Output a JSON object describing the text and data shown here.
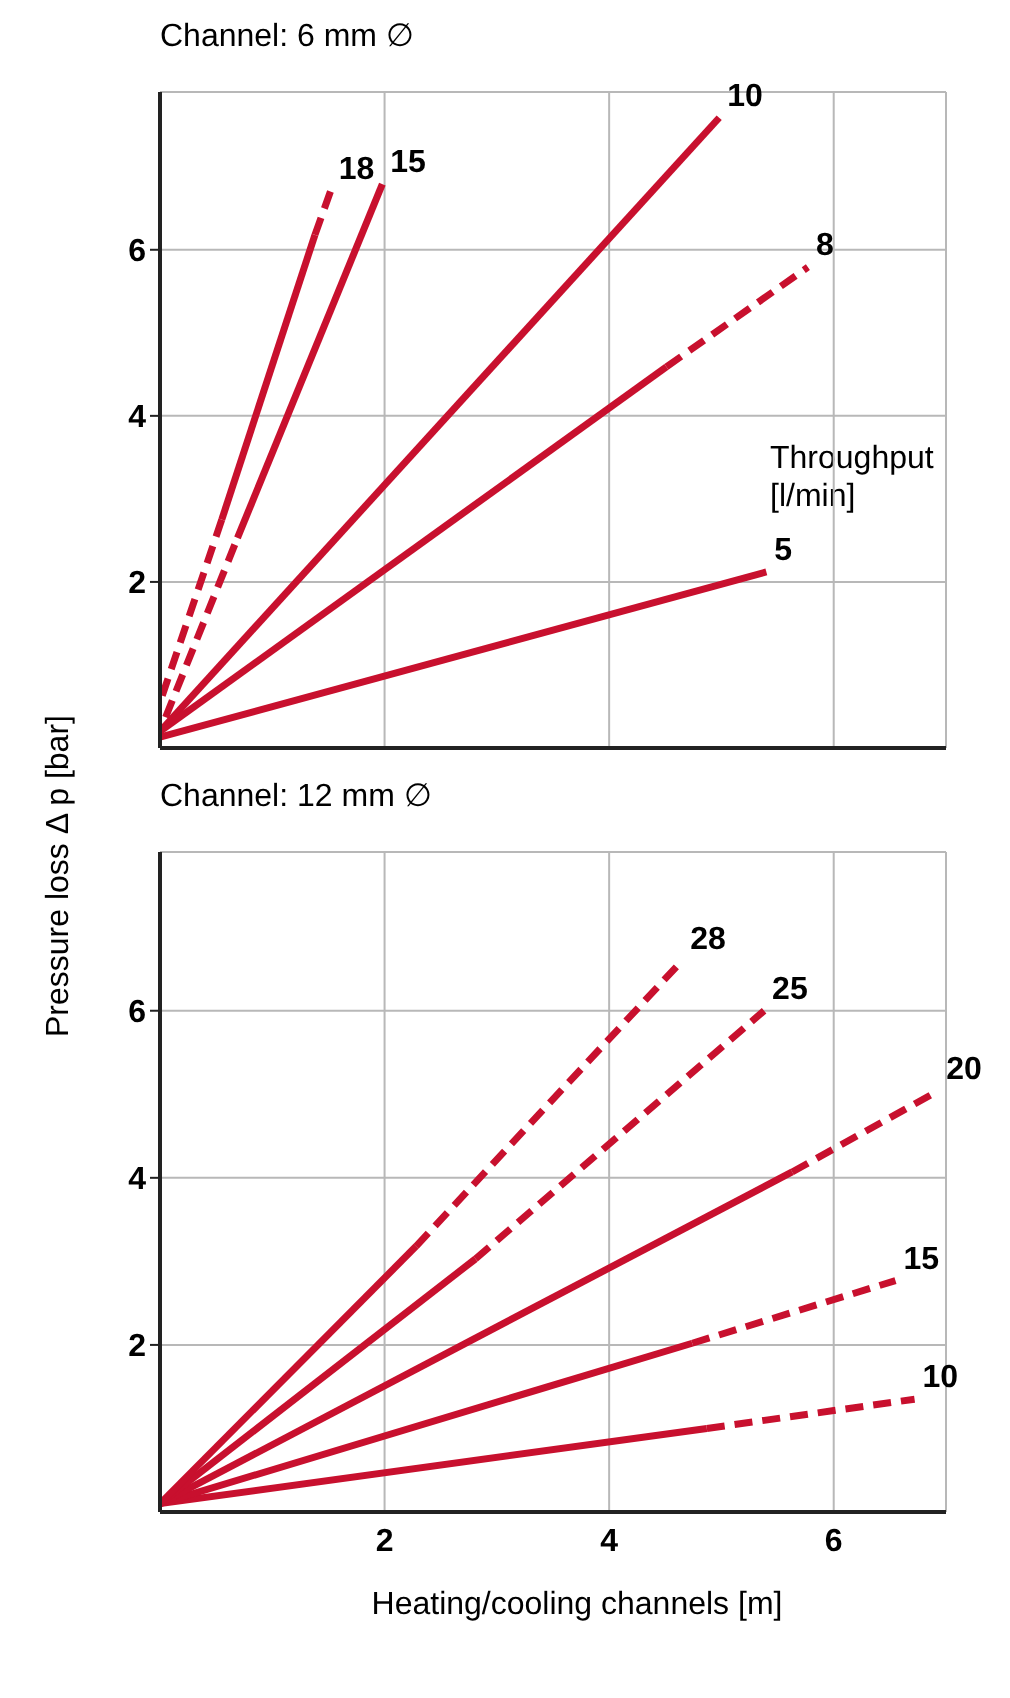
{
  "chart_data": [
    {
      "type": "line",
      "title": "Channel: 6 mm ∅",
      "ylabel": "Pressure loss Δ p [bar]",
      "annotations": [
        "Throughput\n[l/min]"
      ],
      "xlim": [
        0,
        7
      ],
      "xticks": [
        2,
        4,
        6
      ],
      "ylim": [
        0,
        7.9
      ],
      "yticks": [
        2,
        4,
        6
      ],
      "grid": true,
      "marker": "none",
      "tick_labels": "y",
      "series": [
        {
          "name": "5",
          "color": "#c8102e",
          "line_style": "solid",
          "x": [
            0,
            5.4
          ],
          "values": [
            0.13,
            2.12
          ]
        },
        {
          "name": "10",
          "color": "#c8102e",
          "line_style": "solid",
          "x": [
            0,
            4.98
          ],
          "values": [
            0.2,
            7.59
          ]
        },
        {
          "color": "#c8102e",
          "line_style": "solid",
          "x": [
            0,
            4.51
          ],
          "values": [
            0.2,
            4.59
          ]
        },
        {
          "name": "8",
          "color": "#c8102e",
          "line_style": "dashed",
          "x": [
            4.51,
            5.77
          ],
          "values": [
            4.59,
            5.79
          ]
        },
        {
          "color": "#c8102e",
          "line_style": "dashed",
          "x": [
            0.05,
            0.69
          ],
          "values": [
            0.37,
            2.53
          ]
        },
        {
          "name": "15",
          "color": "#c8102e",
          "line_style": "solid",
          "x": [
            0.69,
            1.98
          ],
          "values": [
            2.53,
            6.79
          ]
        },
        {
          "color": "#c8102e",
          "line_style": "dashed",
          "x": [
            0.02,
            0.55
          ],
          "values": [
            0.63,
            2.75
          ]
        },
        {
          "color": "#c8102e",
          "line_style": "solid",
          "x": [
            0.55,
            1.38
          ],
          "values": [
            2.75,
            6.18
          ]
        },
        {
          "name": "18",
          "color": "#c8102e",
          "line_style": "dashed",
          "x": [
            1.38,
            1.52
          ],
          "values": [
            6.18,
            6.71
          ]
        }
      ]
    },
    {
      "type": "line",
      "title": "Channel: 12 mm ∅",
      "xlabel": "Heating/cooling channels [m]",
      "xlim": [
        0,
        7
      ],
      "xticks": [
        2,
        4,
        6
      ],
      "ylim": [
        0,
        7.9
      ],
      "yticks": [
        2,
        4,
        6
      ],
      "grid": true,
      "marker": "none",
      "series": [
        {
          "color": "#c8102e",
          "line_style": "solid",
          "x": [
            0,
            4.87
          ],
          "values": [
            0.1,
            1.0
          ]
        },
        {
          "name": "10",
          "color": "#c8102e",
          "line_style": "dashed",
          "x": [
            4.87,
            6.72
          ],
          "values": [
            1.0,
            1.35
          ]
        },
        {
          "color": "#c8102e",
          "line_style": "solid",
          "x": [
            0,
            4.74
          ],
          "values": [
            0.1,
            2.02
          ]
        },
        {
          "name": "15",
          "color": "#c8102e",
          "line_style": "dashed",
          "x": [
            4.74,
            6.55
          ],
          "values": [
            2.02,
            2.77
          ]
        },
        {
          "color": "#c8102e",
          "line_style": "solid",
          "x": [
            0,
            5.63
          ],
          "values": [
            0.1,
            4.07
          ]
        },
        {
          "name": "20",
          "color": "#c8102e",
          "line_style": "dashed",
          "x": [
            5.63,
            6.93
          ],
          "values": [
            4.07,
            5.04
          ]
        },
        {
          "color": "#c8102e",
          "line_style": "solid",
          "x": [
            0,
            2.81
          ],
          "values": [
            0.1,
            3.03
          ]
        },
        {
          "name": "25",
          "color": "#c8102e",
          "line_style": "dashed",
          "x": [
            2.81,
            5.38
          ],
          "values": [
            3.03,
            6.0
          ]
        },
        {
          "color": "#c8102e",
          "line_style": "solid",
          "x": [
            0,
            2.28
          ],
          "values": [
            0.1,
            3.18
          ]
        },
        {
          "name": "28",
          "color": "#c8102e",
          "line_style": "dashed",
          "x": [
            2.28,
            4.65
          ],
          "values": [
            3.18,
            6.6
          ]
        }
      ]
    }
  ]
}
